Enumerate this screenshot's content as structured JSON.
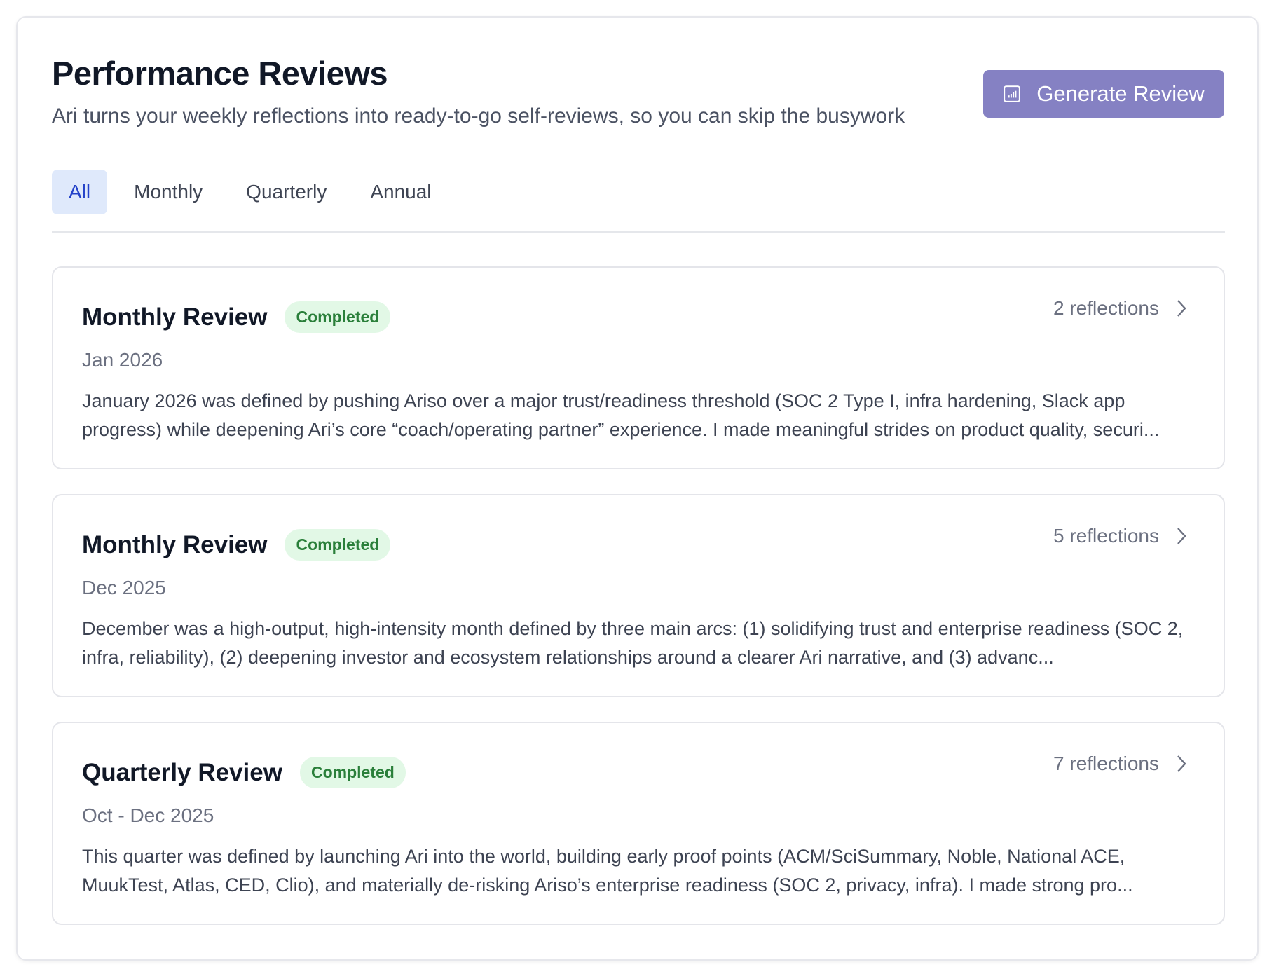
{
  "header": {
    "title": "Performance Reviews",
    "subtitle": "Ari turns your weekly reflections into ready-to-go self-reviews, so you can skip the busywork",
    "generate_button": "Generate Review",
    "generate_icon": "bar-chart-icon"
  },
  "colors": {
    "accent": "#8581c3",
    "tab_active_bg": "#dfe9fb",
    "tab_active_text": "#2442c9",
    "badge_bg": "#e2f8e6",
    "badge_text": "#2a7f3a"
  },
  "tabs": [
    {
      "label": "All",
      "active": true
    },
    {
      "label": "Monthly"
    },
    {
      "label": "Quarterly"
    },
    {
      "label": "Annual"
    }
  ],
  "reviews": [
    {
      "title": "Monthly Review",
      "status": "Completed",
      "reflections": "2 reflections",
      "period": "Jan 2026",
      "summary": "January 2026 was defined by pushing Ariso over a major trust/readiness threshold (SOC 2 Type I, infra hardening, Slack app progress) while deepening Ari’s core “coach/operating partner” experience. I made meaningful strides on product quality, securi..."
    },
    {
      "title": "Monthly Review",
      "status": "Completed",
      "reflections": "5 reflections",
      "period": "Dec 2025",
      "summary": "December was a high-output, high-intensity month defined by three main arcs: (1) solidifying trust and enterprise readiness (SOC 2, infra, reliability), (2) deepening investor and ecosystem relationships around a clearer Ari narrative, and (3) advanc..."
    },
    {
      "title": "Quarterly Review",
      "status": "Completed",
      "reflections": "7 reflections",
      "period": "Oct - Dec 2025",
      "summary": "This quarter was defined by launching Ari into the world, building early proof points (ACM/SciSummary, Noble, National ACE, MuukTest, Atlas, CED, Clio), and materially de-risking Ariso’s enterprise readiness (SOC 2, privacy, infra). I made strong pro..."
    }
  ]
}
